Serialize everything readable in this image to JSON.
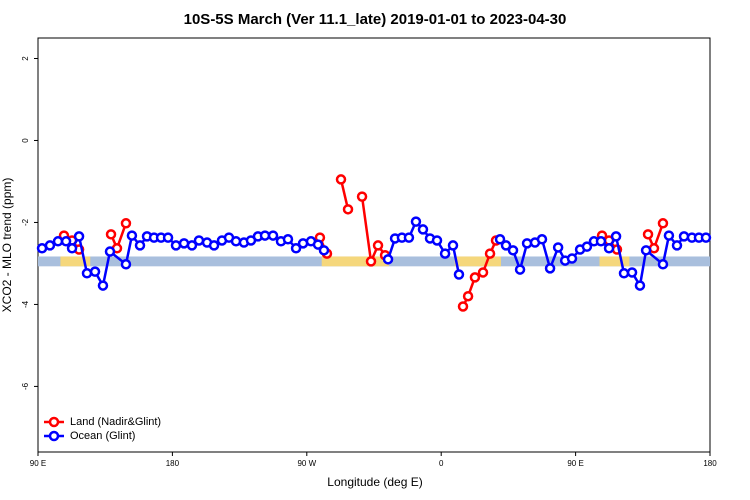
{
  "chart_data": {
    "type": "line",
    "title": "10S-5S March (Ver 11.1_late)   2019-01-01 to 2023-04-30",
    "x_label": "Longitude (deg E)",
    "y_label": "XCO2 - MLO trend (ppm)",
    "xlim": [
      90,
      540
    ],
    "xticks": [
      {
        "value": 90,
        "label": "90 E"
      },
      180,
      {
        "value": 270,
        "label": "90 W"
      },
      {
        "value": 360,
        "label": "0"
      },
      {
        "value": 450,
        "label": "90 E"
      },
      {
        "value": 540,
        "label": "180"
      }
    ],
    "ylim": [
      -7.6,
      2.5
    ],
    "yticks": [
      -6,
      -4,
      -2,
      0,
      2
    ],
    "legend": "bottom-left",
    "band": {
      "ylim": [
        -3.07,
        -2.83
      ],
      "color": "#a9bfdd",
      "land_color": "#f5d77c",
      "land": [
        [
          105,
          125
        ],
        [
          280,
          325
        ],
        [
          369,
          400
        ],
        [
          466,
          486
        ]
      ]
    },
    "series": [
      {
        "name": "Land (Nadir&Glint)",
        "color": "#ff0000",
        "x": [
          107.4,
          112.8,
          117.5,
          125,
          138.9,
          142.9,
          148.9,
          200,
          278.8,
          283.5,
          290,
          292.9,
          297.6,
          300,
          307.0,
          313.0,
          317.7,
          322.4,
          400,
          374.6,
          378.0,
          382.6,
          388.0,
          392.7,
          396.7,
          450,
          467.7,
          472.4,
          477.7,
          490,
          498.5,
          502.5,
          508.5
        ],
        "values": [
          -2.32,
          -2.44,
          -2.66,
          null,
          -2.29,
          -2.63,
          -2.02,
          null,
          -2.37,
          -2.76,
          null,
          -0.95,
          -1.68,
          null,
          -1.37,
          -2.95,
          -2.56,
          -2.8,
          null,
          -4.05,
          -3.8,
          -3.34,
          -3.22,
          -2.76,
          -2.44,
          null,
          -2.32,
          -2.44,
          -2.66,
          null,
          -2.29,
          -2.63,
          -2.02
        ]
      },
      {
        "name": "Ocean (Glint)",
        "color": "#0000ff",
        "x": [
          92.7,
          98.0,
          103.4,
          108.8,
          112.8,
          117.5,
          122.8,
          128.2,
          133.5,
          138.2,
          148.9,
          152.9,
          158.3,
          163.0,
          167.7,
          172.4,
          177.1,
          182.4,
          187.8,
          193.1,
          197.8,
          203.2,
          207.9,
          213.2,
          217.9,
          222.6,
          227.9,
          232.6,
          237.3,
          242.0,
          247.4,
          252.7,
          257.4,
          262.8,
          267.5,
          272.8,
          277.5,
          281.5,
          300,
          324.4,
          329.1,
          333.7,
          338.4,
          343.1,
          347.8,
          352.5,
          357.2,
          362.6,
          367.9,
          371.9,
          385,
          399.4,
          403.4,
          408.1,
          412.8,
          417.5,
          422.8,
          427.5,
          432.9,
          438.3,
          443.0,
          447.6,
          453.0,
          457.6,
          462.3,
          467.0,
          472.4,
          477.1,
          482.4,
          487.8,
          493.1,
          497.2,
          508.5,
          512.5,
          517.9,
          522.6,
          527.9,
          532.6,
          537.3
        ],
        "values": [
          -2.63,
          -2.56,
          -2.46,
          -2.46,
          -2.63,
          -2.34,
          -3.24,
          -3.2,
          -3.54,
          -2.71,
          -3.02,
          -2.32,
          -2.56,
          -2.34,
          -2.37,
          -2.37,
          -2.37,
          -2.56,
          -2.51,
          -2.56,
          -2.44,
          -2.49,
          -2.56,
          -2.44,
          -2.37,
          -2.46,
          -2.49,
          -2.44,
          -2.34,
          -2.32,
          -2.32,
          -2.46,
          -2.41,
          -2.63,
          -2.51,
          -2.46,
          -2.54,
          -2.68,
          null,
          -2.9,
          -2.39,
          -2.37,
          -2.37,
          -1.98,
          -2.17,
          -2.39,
          -2.44,
          -2.76,
          -2.56,
          -3.27,
          null,
          -2.41,
          -2.56,
          -2.68,
          -3.15,
          -2.51,
          -2.49,
          -2.41,
          -3.12,
          -2.61,
          -2.93,
          -2.88,
          -2.66,
          -2.59,
          -2.46,
          -2.46,
          -2.63,
          -2.34,
          -3.24,
          -3.22,
          -3.54,
          -2.68,
          -3.02,
          -2.32,
          -2.56,
          -2.34,
          -2.37,
          -2.37,
          -2.37
        ]
      }
    ]
  }
}
